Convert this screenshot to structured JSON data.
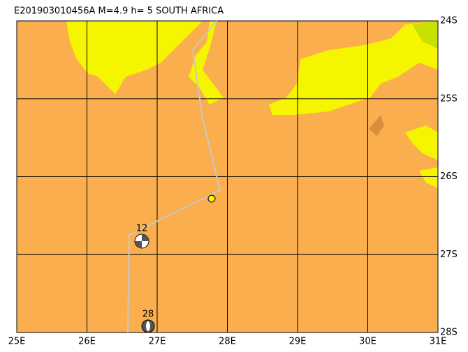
{
  "header": {
    "title": "E201903010456A M=4.9 h=  5 SOUTH AFRICA"
  },
  "map": {
    "lon_ticks": [
      {
        "value": 25,
        "label": "25E"
      },
      {
        "value": 26,
        "label": "26E"
      },
      {
        "value": 27,
        "label": "27E"
      },
      {
        "value": 28,
        "label": "28E"
      },
      {
        "value": 29,
        "label": "29E"
      },
      {
        "value": 30,
        "label": "30E"
      },
      {
        "value": 31,
        "label": "31E"
      }
    ],
    "lat_ticks": [
      {
        "value": -24,
        "label": "24S"
      },
      {
        "value": -25,
        "label": "25S"
      },
      {
        "value": -26,
        "label": "26S"
      },
      {
        "value": -27,
        "label": "27S"
      },
      {
        "value": -28,
        "label": "28S"
      }
    ],
    "stations": [
      {
        "label": "12"
      },
      {
        "label": "28"
      }
    ]
  }
}
